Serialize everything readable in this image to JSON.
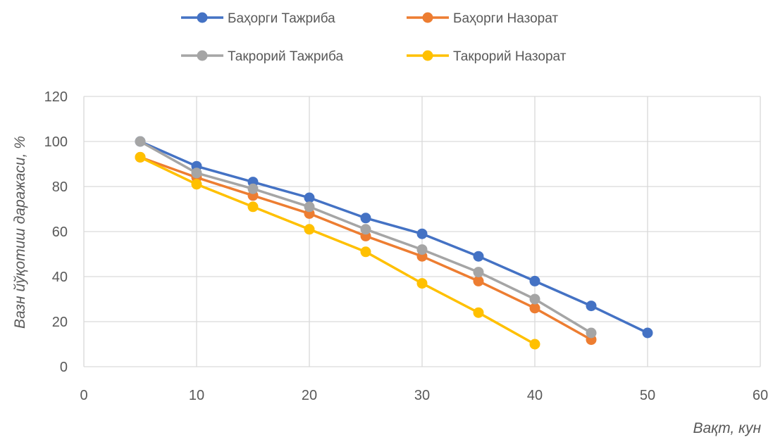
{
  "chart_data": {
    "type": "line",
    "title": "",
    "xlabel": "Вақт, кун",
    "ylabel": "Вазн йўқотиш даражаси, %",
    "xlim": [
      0,
      60
    ],
    "ylim": [
      0,
      120
    ],
    "xticks": [
      0,
      10,
      20,
      30,
      40,
      50,
      60
    ],
    "yticks": [
      0,
      20,
      40,
      60,
      80,
      100,
      120
    ],
    "grid": true,
    "legend_position": "top",
    "series": [
      {
        "name": "Баҳорги Тажриба",
        "color": "#4472C4",
        "x": [
          5,
          10,
          15,
          20,
          25,
          30,
          35,
          40,
          45,
          50
        ],
        "y": [
          100,
          89,
          82,
          75,
          66,
          59,
          49,
          38,
          27,
          15
        ]
      },
      {
        "name": "Баҳорги Назорат",
        "color": "#ED7D31",
        "x": [
          5,
          10,
          15,
          20,
          25,
          30,
          35,
          40,
          45
        ],
        "y": [
          93,
          84,
          76,
          68,
          58,
          49,
          38,
          26,
          12
        ]
      },
      {
        "name": "Такрорий Тажриба",
        "color": "#A5A5A5",
        "x": [
          5,
          10,
          15,
          20,
          25,
          30,
          35,
          40,
          45
        ],
        "y": [
          100,
          86,
          79,
          71,
          61,
          52,
          42,
          30,
          15
        ]
      },
      {
        "name": "Такрорий Назорат",
        "color": "#FFC000",
        "x": [
          5,
          10,
          15,
          20,
          25,
          30,
          35,
          40
        ],
        "y": [
          93,
          81,
          71,
          61,
          51,
          37,
          24,
          10
        ]
      }
    ]
  }
}
